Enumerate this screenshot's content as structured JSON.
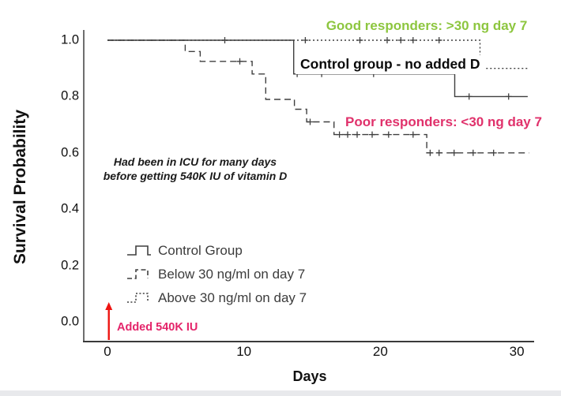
{
  "chart_data": {
    "type": "line",
    "subtype": "kaplan-meier-step",
    "xlabel": "Days",
    "ylabel": "Survival Probability",
    "xlim": [
      0,
      31
    ],
    "ylim": [
      0.0,
      1.0
    ],
    "x_ticks": [
      "0",
      "10",
      "20",
      "30"
    ],
    "y_ticks": [
      "1.0",
      "0.8",
      "0.6",
      "0.4",
      "0.2",
      "0.0"
    ],
    "grid": false,
    "legend_position": "lower-left-inside",
    "series": [
      {
        "name": "Control Group",
        "style": "solid",
        "color": "#3f3f3f",
        "points": [
          [
            0,
            1.0
          ],
          [
            13.65,
            1.0
          ],
          [
            13.65,
            0.88
          ],
          [
            25.45,
            0.88
          ],
          [
            25.45,
            0.8
          ],
          [
            30.8,
            0.8
          ]
        ],
        "censors": [
          [
            13.9,
            0.88
          ],
          [
            15.7,
            0.88
          ],
          [
            19.5,
            0.88
          ],
          [
            26.5,
            0.8
          ],
          [
            29.4,
            0.8
          ]
        ]
      },
      {
        "name": "Below 30 ng/ml on day 7",
        "style": "dashed",
        "color": "#3f3f3f",
        "points": [
          [
            0,
            1.0
          ],
          [
            5.7,
            1.0
          ],
          [
            5.7,
            0.96
          ],
          [
            6.8,
            0.96
          ],
          [
            6.8,
            0.925
          ],
          [
            10.6,
            0.925
          ],
          [
            10.6,
            0.88
          ],
          [
            11.6,
            0.88
          ],
          [
            11.6,
            0.79
          ],
          [
            13.7,
            0.79
          ],
          [
            13.7,
            0.755
          ],
          [
            14.6,
            0.755
          ],
          [
            14.6,
            0.71
          ],
          [
            16.6,
            0.71
          ],
          [
            16.6,
            0.665
          ],
          [
            23.4,
            0.665
          ],
          [
            23.4,
            0.6
          ],
          [
            30.9,
            0.6
          ]
        ],
        "censors": [
          [
            9.7,
            0.925
          ],
          [
            14.85,
            0.71
          ],
          [
            17.0,
            0.665
          ],
          [
            17.6,
            0.665
          ],
          [
            18.3,
            0.665
          ],
          [
            19.4,
            0.665
          ],
          [
            20.6,
            0.665
          ],
          [
            22.4,
            0.665
          ],
          [
            23.65,
            0.6
          ],
          [
            24.3,
            0.6
          ],
          [
            25.4,
            0.6
          ],
          [
            26.8,
            0.6
          ],
          [
            28.3,
            0.6
          ]
        ]
      },
      {
        "name": "Above 30 ng/ml on day 7",
        "style": "dotted",
        "color": "#3f3f3f",
        "points": [
          [
            0,
            1.0
          ],
          [
            27.3,
            1.0
          ],
          [
            27.3,
            0.9
          ],
          [
            30.9,
            0.9
          ]
        ],
        "censors": [
          [
            8.6,
            1.0
          ],
          [
            14.5,
            1.0
          ],
          [
            18.5,
            1.0
          ],
          [
            20.5,
            1.0
          ],
          [
            21.5,
            1.0
          ],
          [
            22.4,
            1.0
          ],
          [
            24.3,
            1.0
          ]
        ]
      }
    ],
    "annotations": {
      "good_responders": {
        "text": "Good responders: >30 ng day 7",
        "color": "#8dc63f"
      },
      "control_group": {
        "text": "Control group - no added D",
        "color": "#0a0a0a"
      },
      "poor_responders": {
        "text": "Poor responders: <30 ng day 7",
        "color": "#e0316b"
      },
      "icu_note": {
        "line1": "Had been in ICU for many days",
        "line2": "before getting 540K IU of vitamin D",
        "color": "#1a1a1a"
      },
      "added_540k": {
        "text": "Added 540K IU",
        "color": "#e4246a",
        "arrow_color": "#ee1411",
        "arrow_day": 0.1
      }
    }
  },
  "legend": {
    "items": [
      {
        "label": "Control Group",
        "style": "solid"
      },
      {
        "label": "Below 30 ng/ml on day 7",
        "style": "dashed"
      },
      {
        "label": "Above 30 ng/ml on day 7",
        "style": "dotted"
      }
    ]
  }
}
